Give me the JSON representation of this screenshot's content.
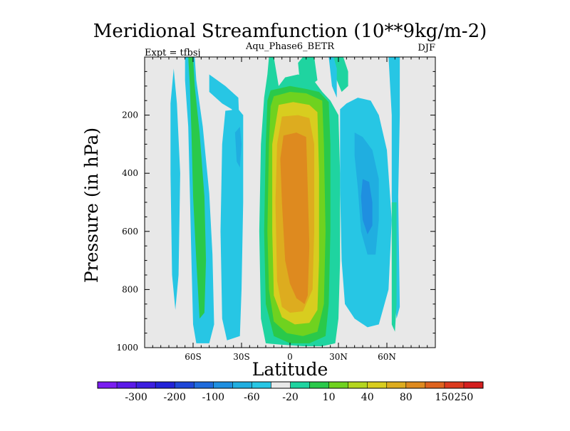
{
  "chart_data": {
    "type": "heatmap",
    "title": "Meridional Streamfunction (10**9kg/m-2)",
    "subtitle": "Aqu_Phase6_BETR",
    "left_label": "Expt = tfbsj",
    "right_label": "DJF",
    "xlabel": "Latitude",
    "ylabel": "Pressure (in hPa)",
    "xlim": [
      -90,
      90
    ],
    "ylim": [
      1000,
      0
    ],
    "x_ticks": [
      {
        "value": -60,
        "label": "60S"
      },
      {
        "value": -30,
        "label": "30S"
      },
      {
        "value": 0,
        "label": "0"
      },
      {
        "value": 30,
        "label": "30N"
      },
      {
        "value": 60,
        "label": "60N"
      }
    ],
    "y_ticks": [
      {
        "value": 200,
        "label": "200"
      },
      {
        "value": 400,
        "label": "400"
      },
      {
        "value": 600,
        "label": "600"
      },
      {
        "value": 800,
        "label": "800"
      },
      {
        "value": 1000,
        "label": "1000"
      }
    ],
    "colorbar": {
      "colors": [
        "#7a1df0",
        "#5b1ae8",
        "#3d1fe0",
        "#2323d8",
        "#1f47d8",
        "#1f6bdc",
        "#1f8fe0",
        "#20aee0",
        "#27c6e4",
        "#e8e8e8",
        "#1fd4a0",
        "#2ac94a",
        "#6fd21f",
        "#b4d61f",
        "#d8cd1f",
        "#ddac1f",
        "#de8a1f",
        "#de631f",
        "#dc3b1f",
        "#d41f1f"
      ],
      "labels": [
        "-300",
        "-200",
        "-100",
        "-60",
        "-20",
        "10",
        "40",
        "80",
        "150",
        "250"
      ],
      "label_after_bins": [
        2,
        4,
        6,
        8,
        10,
        12,
        14,
        16,
        18
      ]
    },
    "background_color": "#e8e8e8",
    "regions": [
      {
        "color": "#27c6e4",
        "poly": [
          [
            -72,
            40
          ],
          [
            -70,
            160
          ],
          [
            -68,
            400
          ],
          [
            -69,
            750
          ],
          [
            -71,
            870
          ],
          [
            -73,
            750
          ],
          [
            -74,
            400
          ],
          [
            -74,
            160
          ]
        ]
      },
      {
        "color": "#27c6e4",
        "poly": [
          [
            -65,
            0
          ],
          [
            -59,
            0
          ],
          [
            -58,
            80
          ],
          [
            -54,
            240
          ],
          [
            -50,
            470
          ],
          [
            -48,
            680
          ],
          [
            -47,
            920
          ],
          [
            -50,
            985
          ],
          [
            -58,
            985
          ],
          [
            -60,
            920
          ],
          [
            -61,
            700
          ],
          [
            -62,
            470
          ],
          [
            -63,
            240
          ],
          [
            -65,
            80
          ]
        ]
      },
      {
        "color": "#2ac94a",
        "poly": [
          [
            -63,
            0
          ],
          [
            -60,
            0
          ],
          [
            -59,
            100
          ],
          [
            -56,
            260
          ],
          [
            -53,
            480
          ],
          [
            -52,
            700
          ],
          [
            -53,
            880
          ],
          [
            -56,
            900
          ],
          [
            -58,
            700
          ],
          [
            -60,
            480
          ],
          [
            -61,
            260
          ],
          [
            -62,
            100
          ]
        ]
      },
      {
        "color": "#27c6e4",
        "poly": [
          [
            -50,
            60
          ],
          [
            -40,
            100
          ],
          [
            -32,
            140
          ],
          [
            -31,
            280
          ],
          [
            -36,
            180
          ],
          [
            -42,
            160
          ],
          [
            -50,
            120
          ]
        ]
      },
      {
        "color": "#27c6e4",
        "poly": [
          [
            -40,
            185
          ],
          [
            -32,
            180
          ],
          [
            -29,
            200
          ],
          [
            -29,
            500
          ],
          [
            -30,
            800
          ],
          [
            -31,
            960
          ],
          [
            -39,
            975
          ],
          [
            -42,
            900
          ],
          [
            -43,
            600
          ],
          [
            -42,
            300
          ]
        ]
      },
      {
        "color": "#20aee0",
        "poly": [
          [
            -34,
            260
          ],
          [
            -31,
            240
          ],
          [
            -30,
            300
          ],
          [
            -31,
            380
          ],
          [
            -33,
            360
          ]
        ]
      },
      {
        "color": "#1fd4a0",
        "poly": [
          [
            -13,
            0
          ],
          [
            -10,
            0
          ],
          [
            -7,
            100
          ],
          [
            -3,
            70
          ],
          [
            5,
            60
          ],
          [
            14,
            75
          ],
          [
            20,
            120
          ],
          [
            25,
            150
          ],
          [
            30,
            200
          ],
          [
            31,
            400
          ],
          [
            31,
            700
          ],
          [
            30,
            900
          ],
          [
            28,
            985
          ],
          [
            20,
            995
          ],
          [
            8,
            995
          ],
          [
            -5,
            990
          ],
          [
            -15,
            985
          ],
          [
            -18,
            900
          ],
          [
            -19,
            600
          ],
          [
            -18,
            300
          ],
          [
            -16,
            140
          ],
          [
            -14,
            60
          ]
        ]
      },
      {
        "color": "#2ac94a",
        "poly": [
          [
            -12,
            115
          ],
          [
            0,
            100
          ],
          [
            10,
            110
          ],
          [
            18,
            120
          ],
          [
            24,
            155
          ],
          [
            25,
            300
          ],
          [
            25,
            600
          ],
          [
            24,
            850
          ],
          [
            22,
            960
          ],
          [
            12,
            985
          ],
          [
            0,
            985
          ],
          [
            -10,
            960
          ],
          [
            -15,
            850
          ],
          [
            -16,
            600
          ],
          [
            -15,
            300
          ],
          [
            -14,
            150
          ]
        ]
      },
      {
        "color": "#6fd21f",
        "poly": [
          [
            -10,
            135
          ],
          [
            0,
            120
          ],
          [
            10,
            125
          ],
          [
            20,
            150
          ],
          [
            21,
            300
          ],
          [
            22,
            600
          ],
          [
            21,
            850
          ],
          [
            17,
            945
          ],
          [
            8,
            960
          ],
          [
            -2,
            950
          ],
          [
            -10,
            910
          ],
          [
            -13,
            800
          ],
          [
            -14,
            600
          ],
          [
            -13,
            300
          ],
          [
            -12,
            170
          ]
        ]
      },
      {
        "color": "#d8cd1f",
        "poly": [
          [
            -7,
            165
          ],
          [
            2,
            155
          ],
          [
            12,
            165
          ],
          [
            17,
            190
          ],
          [
            18,
            400
          ],
          [
            18,
            700
          ],
          [
            17,
            870
          ],
          [
            12,
            915
          ],
          [
            3,
            920
          ],
          [
            -5,
            895
          ],
          [
            -10,
            820
          ],
          [
            -11,
            600
          ],
          [
            -11,
            300
          ]
        ]
      },
      {
        "color": "#ddac1f",
        "poly": [
          [
            -5,
            205
          ],
          [
            5,
            200
          ],
          [
            12,
            210
          ],
          [
            15,
            300
          ],
          [
            15,
            600
          ],
          [
            14,
            800
          ],
          [
            8,
            875
          ],
          [
            0,
            880
          ],
          [
            -5,
            860
          ],
          [
            -8,
            770
          ],
          [
            -9,
            500
          ],
          [
            -8,
            300
          ]
        ]
      },
      {
        "color": "#de8a1f",
        "poly": [
          [
            -4,
            270
          ],
          [
            4,
            260
          ],
          [
            10,
            275
          ],
          [
            11,
            450
          ],
          [
            12,
            650
          ],
          [
            11,
            820
          ],
          [
            9,
            850
          ],
          [
            4,
            830
          ],
          [
            0,
            780
          ],
          [
            -3,
            700
          ],
          [
            -5,
            500
          ],
          [
            -6,
            350
          ]
        ]
      },
      {
        "color": "#1fd4a0",
        "poly": [
          [
            5,
            20
          ],
          [
            8,
            0
          ],
          [
            15,
            0
          ],
          [
            17,
            80
          ],
          [
            12,
            100
          ],
          [
            6,
            80
          ]
        ]
      },
      {
        "color": "#1fd4a0",
        "poly": [
          [
            27,
            0
          ],
          [
            33,
            0
          ],
          [
            36,
            50
          ],
          [
            36,
            100
          ],
          [
            32,
            120
          ],
          [
            29,
            80
          ]
        ]
      },
      {
        "color": "#27c6e4",
        "poly": [
          [
            24,
            0
          ],
          [
            27,
            0
          ],
          [
            29,
            40
          ],
          [
            29,
            140
          ],
          [
            26,
            100
          ]
        ]
      },
      {
        "color": "#27c6e4",
        "poly": [
          [
            31,
            180
          ],
          [
            35,
            160
          ],
          [
            42,
            140
          ],
          [
            50,
            150
          ],
          [
            55,
            200
          ],
          [
            60,
            320
          ],
          [
            63,
            560
          ],
          [
            61,
            800
          ],
          [
            55,
            920
          ],
          [
            48,
            930
          ],
          [
            40,
            900
          ],
          [
            34,
            850
          ],
          [
            32,
            700
          ],
          [
            31,
            450
          ]
        ]
      },
      {
        "color": "#20aee0",
        "poly": [
          [
            40,
            260
          ],
          [
            45,
            275
          ],
          [
            51,
            320
          ],
          [
            55,
            420
          ],
          [
            55,
            560
          ],
          [
            53,
            680
          ],
          [
            48,
            680
          ],
          [
            44,
            600
          ],
          [
            42,
            450
          ],
          [
            40,
            340
          ]
        ]
      },
      {
        "color": "#1f8fe0",
        "poly": [
          [
            45,
            420
          ],
          [
            49,
            430
          ],
          [
            51,
            500
          ],
          [
            51,
            580
          ],
          [
            48,
            610
          ],
          [
            45,
            560
          ],
          [
            44,
            480
          ]
        ]
      },
      {
        "color": "#27c6e4",
        "poly": [
          [
            61,
            0
          ],
          [
            68,
            0
          ],
          [
            68,
            200
          ],
          [
            67,
            480
          ],
          [
            68,
            860
          ],
          [
            66,
            900
          ],
          [
            64,
            800
          ],
          [
            63,
            480
          ],
          [
            63,
            200
          ]
        ]
      },
      {
        "color": "#1fd4a0",
        "poly": [
          [
            63,
            500
          ],
          [
            66,
            500
          ],
          [
            66,
            850
          ],
          [
            65,
            945
          ],
          [
            63,
            920
          ],
          [
            63,
            750
          ]
        ]
      }
    ]
  }
}
